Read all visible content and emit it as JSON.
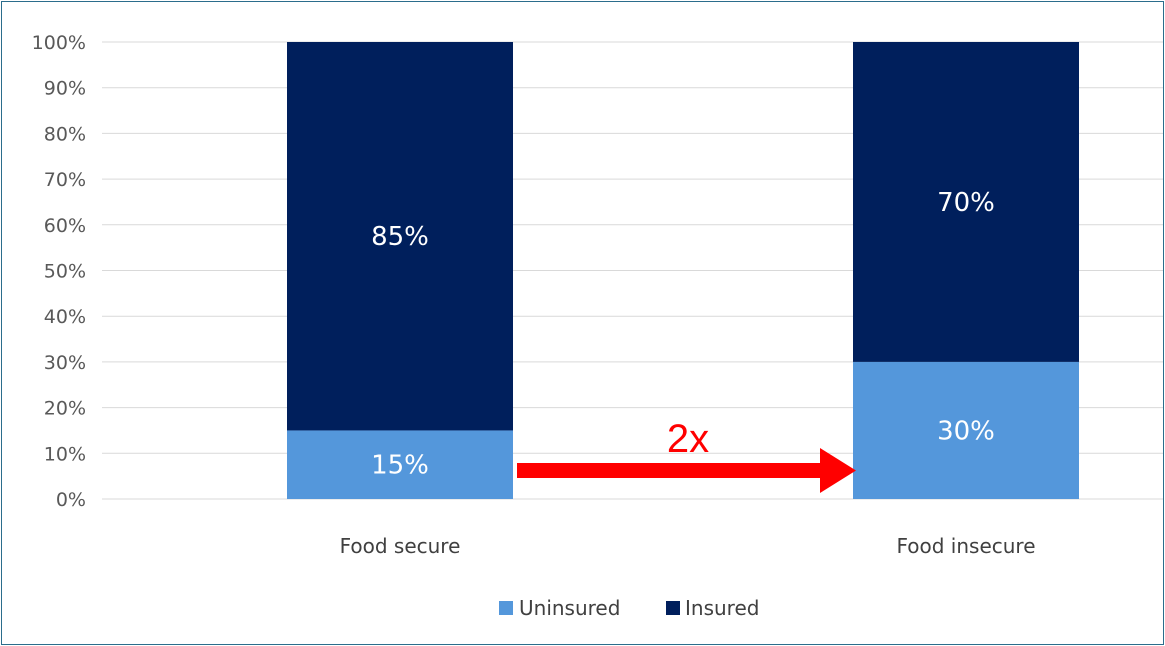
{
  "chart_data": {
    "type": "bar",
    "stacked": true,
    "categories": [
      "Food secure",
      "Food insecure"
    ],
    "series": [
      {
        "name": "Uninsured",
        "values": [
          15,
          30
        ],
        "color": "#5497db",
        "labels": [
          "15%",
          "30%"
        ]
      },
      {
        "name": "Insured",
        "values": [
          85,
          70
        ],
        "color": "#001f5c",
        "labels": [
          "85%",
          "70%"
        ]
      }
    ],
    "yticks": [
      "0%",
      "10%",
      "20%",
      "30%",
      "40%",
      "50%",
      "60%",
      "70%",
      "80%",
      "90%",
      "100%"
    ],
    "ylim": [
      0,
      100
    ],
    "grid": true,
    "legend": {
      "position": "bottom"
    },
    "annotation": {
      "text": "2x",
      "color": "#ff0000",
      "from": "Food secure",
      "to": "Food insecure"
    }
  }
}
